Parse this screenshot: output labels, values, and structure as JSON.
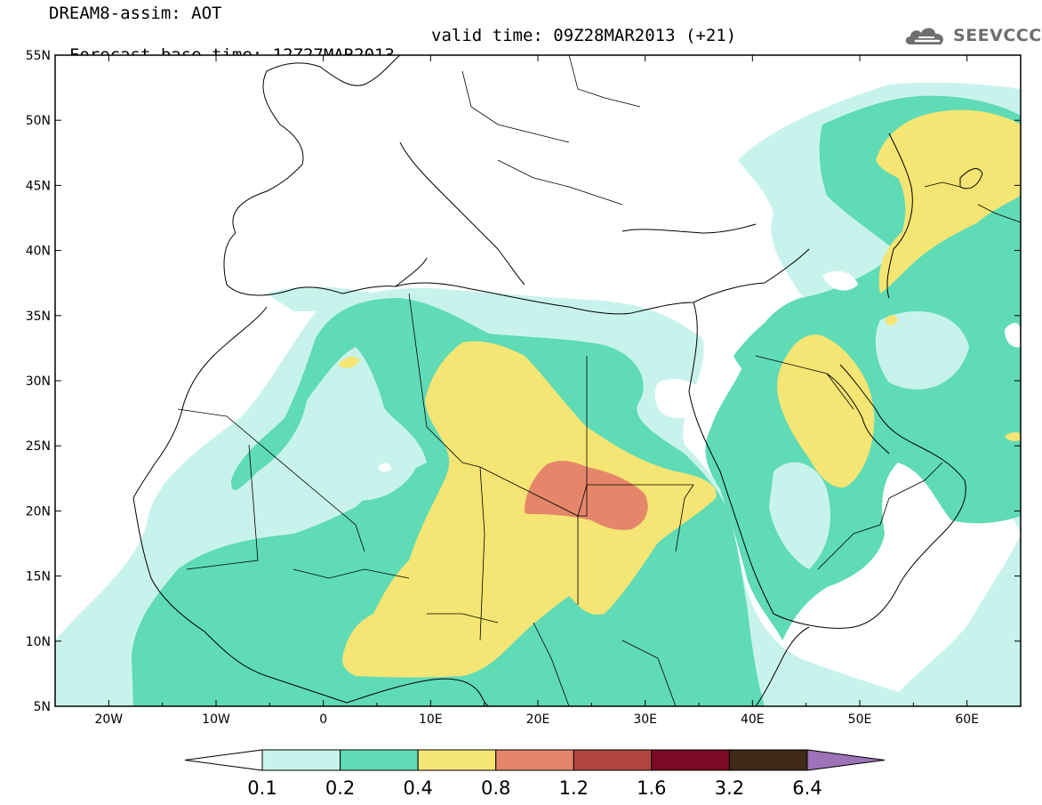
{
  "header": {
    "line1": "DREAM8-assim: AOT",
    "line2": "Forecast base time: 12Z27MAR2013",
    "valid": "valid time: 09Z28MAR2013 (+21)"
  },
  "logo": {
    "text": "SEEVCCC",
    "icon": "cloud-icon"
  },
  "map": {
    "lat_labels": [
      "55N",
      "50N",
      "45N",
      "40N",
      "35N",
      "30N",
      "25N",
      "20N",
      "15N",
      "10N",
      "5N"
    ],
    "lon_labels": [
      "20W",
      "10W",
      "0",
      "10E",
      "20E",
      "30E",
      "40E",
      "50E",
      "60E"
    ],
    "lon_range": [
      -25,
      65
    ],
    "lat_range": [
      5,
      55
    ]
  },
  "colorbar": {
    "labels": [
      "0.1",
      "0.2",
      "0.4",
      "0.8",
      "1.2",
      "1.6",
      "3.2",
      "6.4"
    ],
    "colors": [
      "#c8f3ec",
      "#5fdbb6",
      "#f5e574",
      "#e5866a",
      "#b0463f",
      "#7a0a25",
      "#3e2a15"
    ],
    "extend_color": "#9d72b8"
  }
}
